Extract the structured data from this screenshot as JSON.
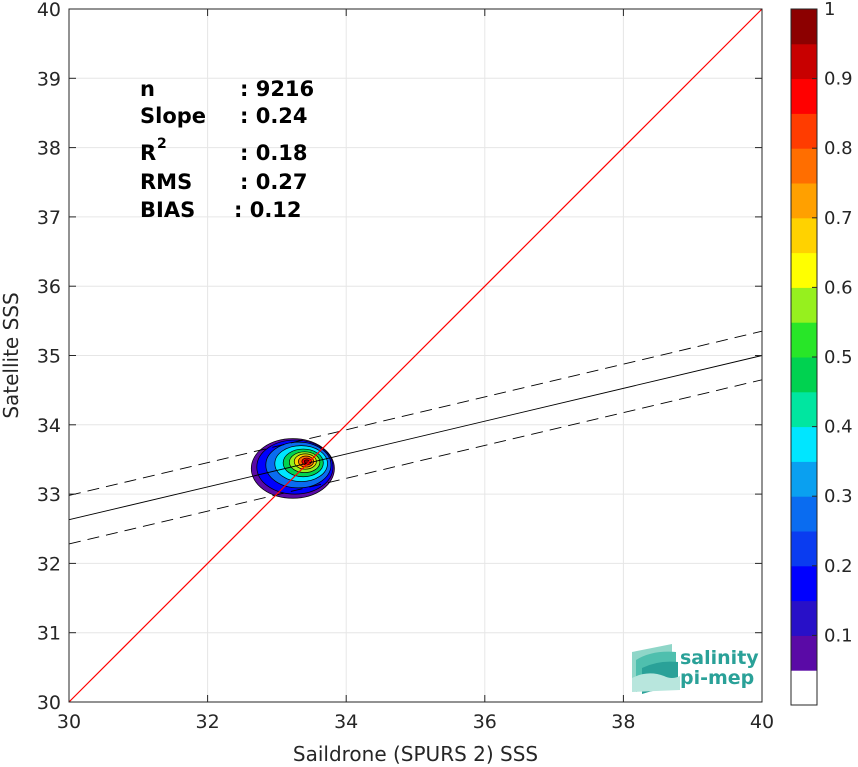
{
  "chart_data": {
    "type": "scatter",
    "subtype": "density-contour",
    "title": "",
    "xlabel": "Saildrone (SPURS 2) SSS",
    "ylabel": "Satellite SSS",
    "xlim": [
      30,
      40
    ],
    "ylim": [
      30,
      40
    ],
    "xticks": [
      30,
      32,
      34,
      36,
      38,
      40
    ],
    "yticks": [
      30,
      31,
      32,
      33,
      34,
      35,
      36,
      37,
      38,
      39,
      40
    ],
    "grid": true,
    "stats": [
      {
        "label": "n",
        "value": ": 9216"
      },
      {
        "label": "Slope",
        "value": ": 0.24"
      },
      {
        "label": "R",
        "sup": "2",
        "value": ": 0.18"
      },
      {
        "label": "RMS",
        "value": ": 0.27"
      },
      {
        "label": "BIAS",
        "value": ": 0.12"
      }
    ],
    "reference_line": {
      "name": "1:1",
      "color": "#ff0000",
      "points": [
        [
          30,
          30
        ],
        [
          40,
          40
        ]
      ]
    },
    "regression_line": {
      "color": "#000000",
      "points": [
        [
          30,
          32.63
        ],
        [
          40,
          35.0
        ]
      ]
    },
    "regression_bounds": [
      {
        "style": "dashed",
        "points": [
          [
            30,
            32.98
          ],
          [
            40,
            35.35
          ]
        ]
      },
      {
        "style": "dashed",
        "points": [
          [
            30,
            32.28
          ],
          [
            40,
            34.65
          ]
        ]
      }
    ],
    "density_center": [
      33.43,
      33.47
    ],
    "density_contours": [
      {
        "level": 0.05,
        "rx": 0.6,
        "ry": 0.43,
        "dx": -0.2,
        "dy": -0.1
      },
      {
        "level": 0.15,
        "rx": 0.55,
        "ry": 0.39,
        "dx": -0.17,
        "dy": -0.08
      },
      {
        "level": 0.25,
        "rx": 0.47,
        "ry": 0.33,
        "dx": -0.12,
        "dy": -0.05
      },
      {
        "level": 0.35,
        "rx": 0.38,
        "ry": 0.26,
        "dx": -0.08,
        "dy": -0.03
      },
      {
        "level": 0.45,
        "rx": 0.29,
        "ry": 0.2,
        "dx": -0.05,
        "dy": -0.02
      },
      {
        "level": 0.55,
        "rx": 0.22,
        "ry": 0.15,
        "dx": -0.03,
        "dy": -0.01
      },
      {
        "level": 0.65,
        "rx": 0.16,
        "ry": 0.11,
        "dx": -0.02,
        "dy": 0.0
      },
      {
        "level": 0.75,
        "rx": 0.11,
        "ry": 0.08,
        "dx": -0.01,
        "dy": 0.0
      },
      {
        "level": 0.85,
        "rx": 0.07,
        "ry": 0.05,
        "dx": 0.0,
        "dy": 0.0
      },
      {
        "level": 0.95,
        "rx": 0.035,
        "ry": 0.025,
        "dx": 0.0,
        "dy": 0.0
      }
    ],
    "colorbar": {
      "min": 0,
      "max": 1,
      "ticks": [
        0.1,
        0.2,
        0.3,
        0.4,
        0.5,
        0.6,
        0.7,
        0.8,
        0.9,
        1
      ],
      "tick_labels": [
        "0.1",
        "0.2",
        "0.3",
        "0.4",
        "0.5",
        "0.6",
        "0.7",
        "0.8",
        "0.9",
        "1"
      ],
      "colors": [
        "#ffffff",
        "#5a0aa6",
        "#2810c8",
        "#0000ff",
        "#0a3cf0",
        "#0a6cf0",
        "#0aa0f0",
        "#00e6ff",
        "#00e6a0",
        "#00d250",
        "#28e628",
        "#96f01e",
        "#ffff00",
        "#ffd200",
        "#ffa000",
        "#ff6e00",
        "#ff3c00",
        "#ff0000",
        "#c80000",
        "#8c0000"
      ]
    }
  },
  "logo": {
    "line1": "salinity",
    "line2": "pi-mep"
  }
}
